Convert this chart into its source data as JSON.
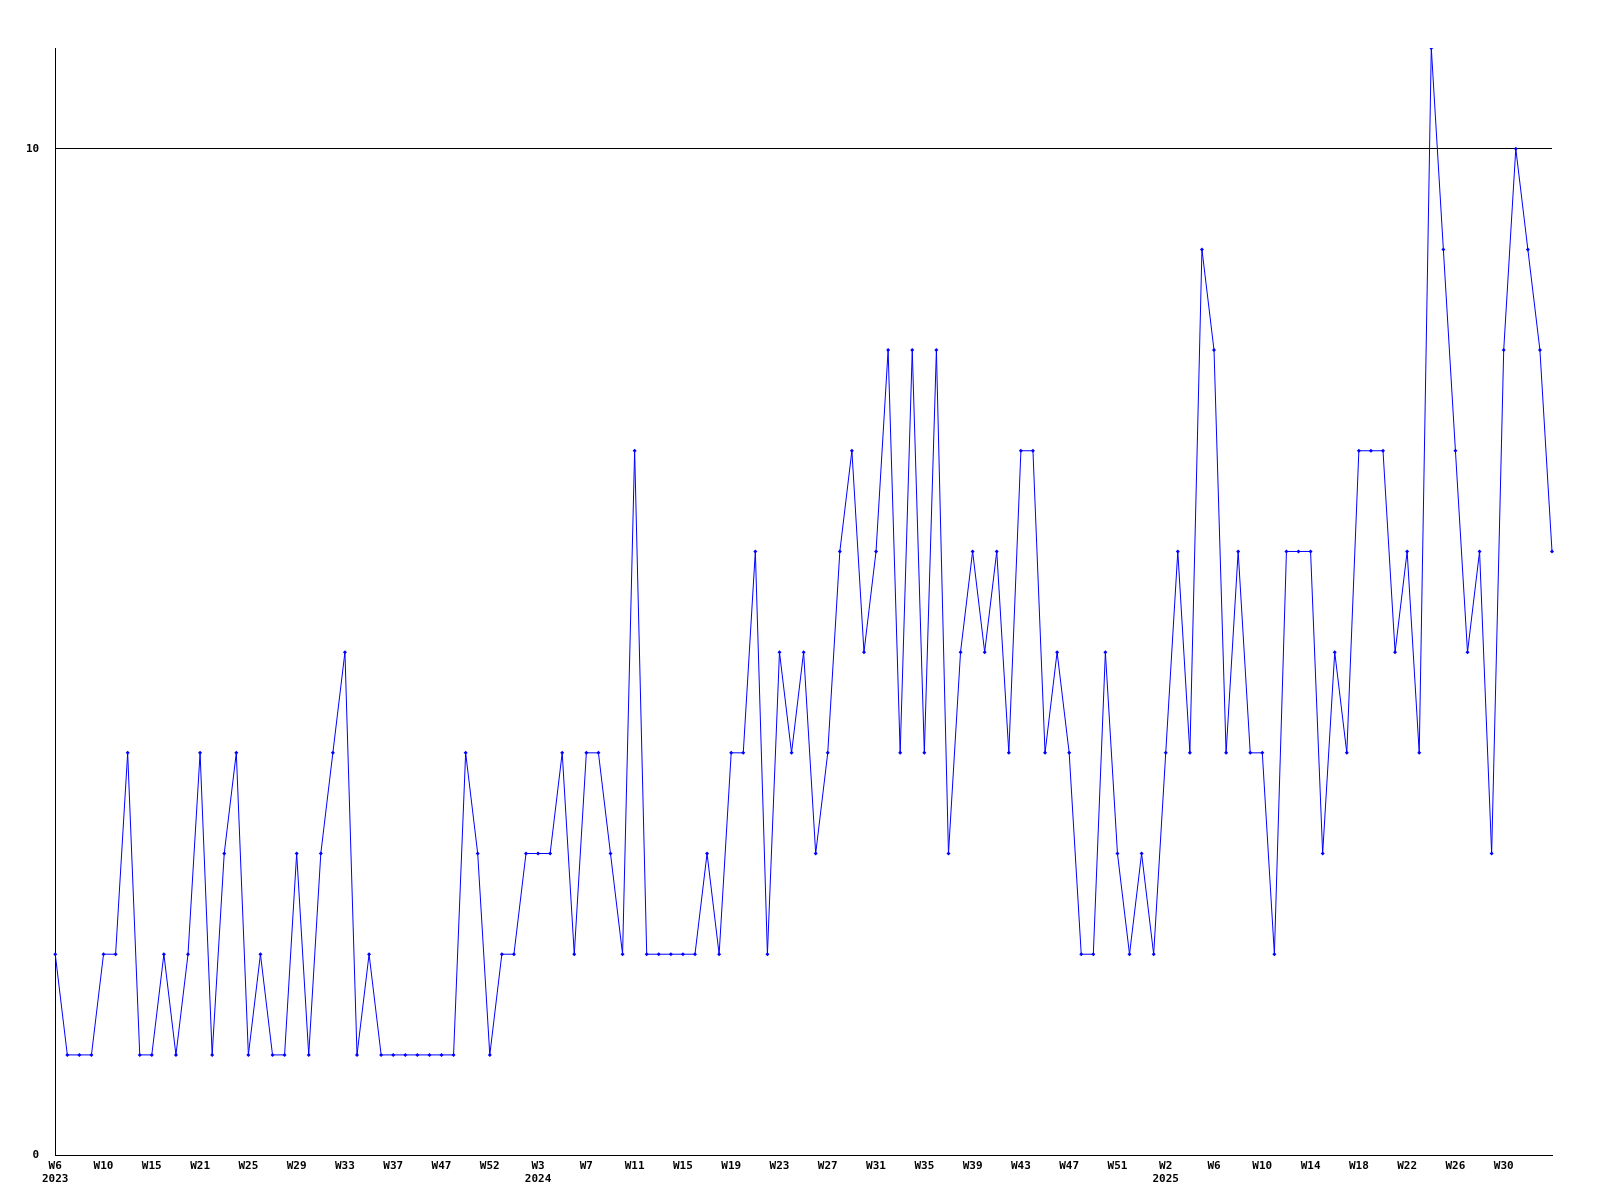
{
  "chart_data": {
    "type": "line",
    "categories": [
      "W6\n2023",
      null,
      null,
      null,
      "W10",
      null,
      null,
      null,
      "W15",
      null,
      null,
      null,
      "W21",
      null,
      null,
      null,
      "W25",
      null,
      null,
      null,
      "W29",
      null,
      null,
      null,
      "W33",
      null,
      null,
      null,
      "W37",
      null,
      null,
      null,
      "W47",
      null,
      null,
      null,
      "W52",
      null,
      null,
      null,
      "W3\n2024",
      null,
      null,
      null,
      "W7",
      null,
      null,
      null,
      "W11",
      null,
      null,
      null,
      "W15",
      null,
      null,
      null,
      "W19",
      null,
      null,
      null,
      "W23",
      null,
      null,
      null,
      "W27",
      null,
      null,
      null,
      "W31",
      null,
      null,
      null,
      "W35",
      null,
      null,
      null,
      "W39",
      null,
      null,
      null,
      "W43",
      null,
      null,
      null,
      "W47",
      null,
      null,
      null,
      "W51",
      null,
      null,
      null,
      "W2\n2025",
      null,
      null,
      null,
      "W6",
      null,
      null,
      null,
      "W10",
      null,
      null,
      null,
      "W14",
      null,
      null,
      null,
      "W18",
      null,
      null,
      null,
      "W22",
      null,
      null,
      null,
      "W26",
      null,
      null,
      null,
      "W30",
      null,
      null,
      null,
      null
    ],
    "series": [
      {
        "color": "#0000ff",
        "values": [
          2,
          1,
          1,
          1,
          2,
          2,
          4,
          1,
          1,
          2,
          1,
          2,
          4,
          1,
          3,
          4,
          1,
          2,
          1,
          1,
          3,
          1,
          3,
          4,
          5,
          1,
          2,
          1,
          1,
          1,
          1,
          1,
          1,
          1,
          4,
          3,
          1,
          2,
          2,
          3,
          3,
          3,
          4,
          2,
          4,
          4,
          3,
          2,
          7,
          2,
          2,
          2,
          2,
          2,
          3,
          2,
          4,
          4,
          6,
          2,
          5,
          4,
          5,
          3,
          4,
          6,
          7,
          5,
          6,
          8,
          4,
          8,
          4,
          8,
          3,
          5,
          6,
          5,
          6,
          4,
          7,
          7,
          4,
          5,
          4,
          2,
          2,
          5,
          3,
          2,
          3,
          2,
          4,
          6,
          4,
          9,
          8,
          4,
          6,
          4,
          4,
          2,
          6,
          6,
          6,
          3,
          5,
          4,
          7,
          7,
          7,
          5,
          6,
          4,
          11,
          9,
          7,
          5,
          6,
          3,
          8,
          10,
          9,
          8,
          6
        ]
      }
    ],
    "ylim": [
      0,
      11
    ],
    "yticks": [
      0,
      10
    ],
    "grid": "y",
    "legend": false,
    "marker": "diamond",
    "line_style": "solid"
  }
}
